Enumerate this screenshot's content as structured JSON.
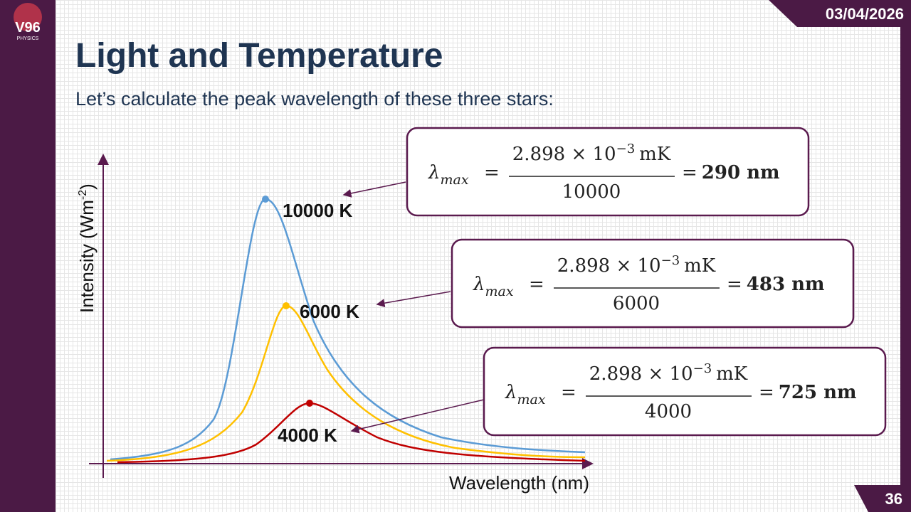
{
  "header": {
    "date": "03/04/2026",
    "title": "Light and Temperature",
    "subtitle": "Let’s calculate the peak wavelength of these three stars:",
    "page_number": "36"
  },
  "logo": {
    "mark": "V96",
    "caption": "PHYSICS"
  },
  "diagram": {
    "y_axis_label": {
      "text": "Intensity (Wm",
      "superscript": "-2",
      "close": ")"
    },
    "x_axis_label": "Wavelength (nm)",
    "curves": [
      {
        "label": "10000 K"
      },
      {
        "label": "6000 K"
      },
      {
        "label": "4000 K"
      }
    ]
  },
  "formulas": [
    {
      "symbol": "λ",
      "subscript": "max",
      "equals": "=",
      "numerator": "2.898 × 10",
      "exponent": "−3",
      "unit": "mK",
      "denominator": "10000",
      "result_equals": "=",
      "result": "290 nm"
    },
    {
      "symbol": "λ",
      "subscript": "max",
      "equals": "=",
      "numerator": "2.898 × 10",
      "exponent": "−3",
      "unit": "mK",
      "denominator": "6000",
      "result_equals": "=",
      "result": "483 nm"
    },
    {
      "symbol": "λ",
      "subscript": "max",
      "equals": "=",
      "numerator": "2.898 × 10",
      "exponent": "−3",
      "unit": "mK",
      "denominator": "4000",
      "result_equals": "=",
      "result": "725 nm"
    }
  ]
}
